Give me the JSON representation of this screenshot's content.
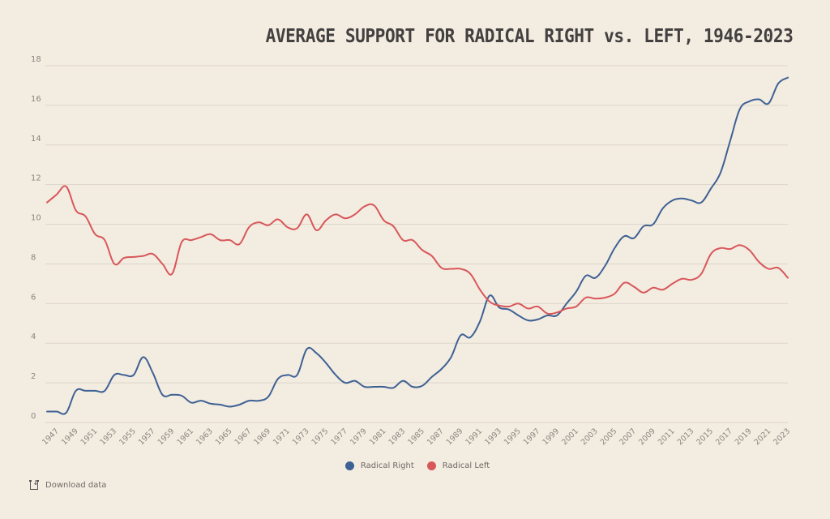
{
  "page": {
    "download_label": "Download data",
    "download_icon": "download-icon"
  },
  "chart_data": {
    "type": "line",
    "title": "AVERAGE SUPPORT FOR RADICAL RIGHT vs. LEFT, 1946-2023",
    "xlabel": "",
    "ylabel": "",
    "xlim": [
      1946,
      2023
    ],
    "ylim": [
      0,
      18
    ],
    "yticks": [
      0,
      2,
      4,
      6,
      8,
      10,
      12,
      14,
      16,
      18
    ],
    "ytick_labels": [
      "0",
      "2",
      "4",
      "6",
      "8",
      "10",
      "12",
      "14",
      "16",
      "18"
    ],
    "xticks": [
      1947,
      1949,
      1951,
      1953,
      1955,
      1957,
      1959,
      1961,
      1963,
      1965,
      1967,
      1969,
      1971,
      1973,
      1975,
      1977,
      1979,
      1981,
      1983,
      1985,
      1987,
      1989,
      1991,
      1993,
      1995,
      1997,
      1999,
      2001,
      2003,
      2005,
      2007,
      2009,
      2011,
      2013,
      2015,
      2017,
      2019,
      2021,
      2023
    ],
    "xtick_labels": [
      "1947",
      "1949",
      "1951",
      "1953",
      "1955",
      "1957",
      "1959",
      "1961",
      "1963",
      "1965",
      "1967",
      "1969",
      "1971",
      "1973",
      "1975",
      "1977",
      "1979",
      "1981",
      "1983",
      "1985",
      "1987",
      "1989",
      "1991",
      "1993",
      "1995",
      "1997",
      "1999",
      "2001",
      "2003",
      "2005",
      "2007",
      "2009",
      "2011",
      "2013",
      "2015",
      "2017",
      "2019",
      "2021",
      "2023"
    ],
    "grid": true,
    "legend_position": "bottom-center",
    "x": [
      1946,
      1947,
      1948,
      1949,
      1950,
      1951,
      1952,
      1953,
      1954,
      1955,
      1956,
      1957,
      1958,
      1959,
      1960,
      1961,
      1962,
      1963,
      1964,
      1965,
      1966,
      1967,
      1968,
      1969,
      1970,
      1971,
      1972,
      1973,
      1974,
      1975,
      1976,
      1977,
      1978,
      1979,
      1980,
      1981,
      1982,
      1983,
      1984,
      1985,
      1986,
      1987,
      1988,
      1989,
      1990,
      1991,
      1992,
      1993,
      1994,
      1995,
      1996,
      1997,
      1998,
      1999,
      2000,
      2001,
      2002,
      2003,
      2004,
      2005,
      2006,
      2007,
      2008,
      2009,
      2010,
      2011,
      2012,
      2013,
      2014,
      2015,
      2016,
      2017,
      2018,
      2019,
      2020,
      2021,
      2022,
      2023
    ],
    "series": [
      {
        "name": "Radical Right",
        "color": "#3e6194",
        "values": [
          0.55,
          0.55,
          0.5,
          1.6,
          1.6,
          1.6,
          1.6,
          2.4,
          2.4,
          2.4,
          3.3,
          2.5,
          1.4,
          1.4,
          1.35,
          1.0,
          1.1,
          0.95,
          0.9,
          0.8,
          0.9,
          1.1,
          1.1,
          1.3,
          2.2,
          2.4,
          2.4,
          3.7,
          3.5,
          3.0,
          2.4,
          2.0,
          2.1,
          1.8,
          1.8,
          1.8,
          1.75,
          2.1,
          1.8,
          1.85,
          2.3,
          2.7,
          3.3,
          4.4,
          4.3,
          5.1,
          6.4,
          5.8,
          5.7,
          5.4,
          5.15,
          5.2,
          5.4,
          5.4,
          6.0,
          6.6,
          7.4,
          7.3,
          7.9,
          8.8,
          9.4,
          9.3,
          9.9,
          10.0,
          10.8,
          11.2,
          11.3,
          11.2,
          11.1,
          11.8,
          12.6,
          14.2,
          15.8,
          16.2,
          16.3,
          16.1,
          17.1,
          17.4
        ]
      },
      {
        "name": "Radical Left",
        "color": "#d8575a",
        "values": [
          11.1,
          11.5,
          11.9,
          10.7,
          10.4,
          9.5,
          9.2,
          8.0,
          8.3,
          8.35,
          8.4,
          8.5,
          8.0,
          7.5,
          9.1,
          9.2,
          9.35,
          9.5,
          9.2,
          9.2,
          9.0,
          9.85,
          10.1,
          9.95,
          10.25,
          9.85,
          9.8,
          10.5,
          9.7,
          10.2,
          10.5,
          10.3,
          10.5,
          10.9,
          10.95,
          10.2,
          9.9,
          9.2,
          9.2,
          8.7,
          8.4,
          7.8,
          7.75,
          7.75,
          7.5,
          6.7,
          6.1,
          5.9,
          5.85,
          6.0,
          5.75,
          5.85,
          5.5,
          5.55,
          5.75,
          5.85,
          6.3,
          6.25,
          6.3,
          6.5,
          7.05,
          6.85,
          6.55,
          6.8,
          6.7,
          7.0,
          7.25,
          7.2,
          7.5,
          8.5,
          8.8,
          8.75,
          8.95,
          8.7,
          8.1,
          7.75,
          7.8,
          7.3
        ]
      }
    ]
  }
}
